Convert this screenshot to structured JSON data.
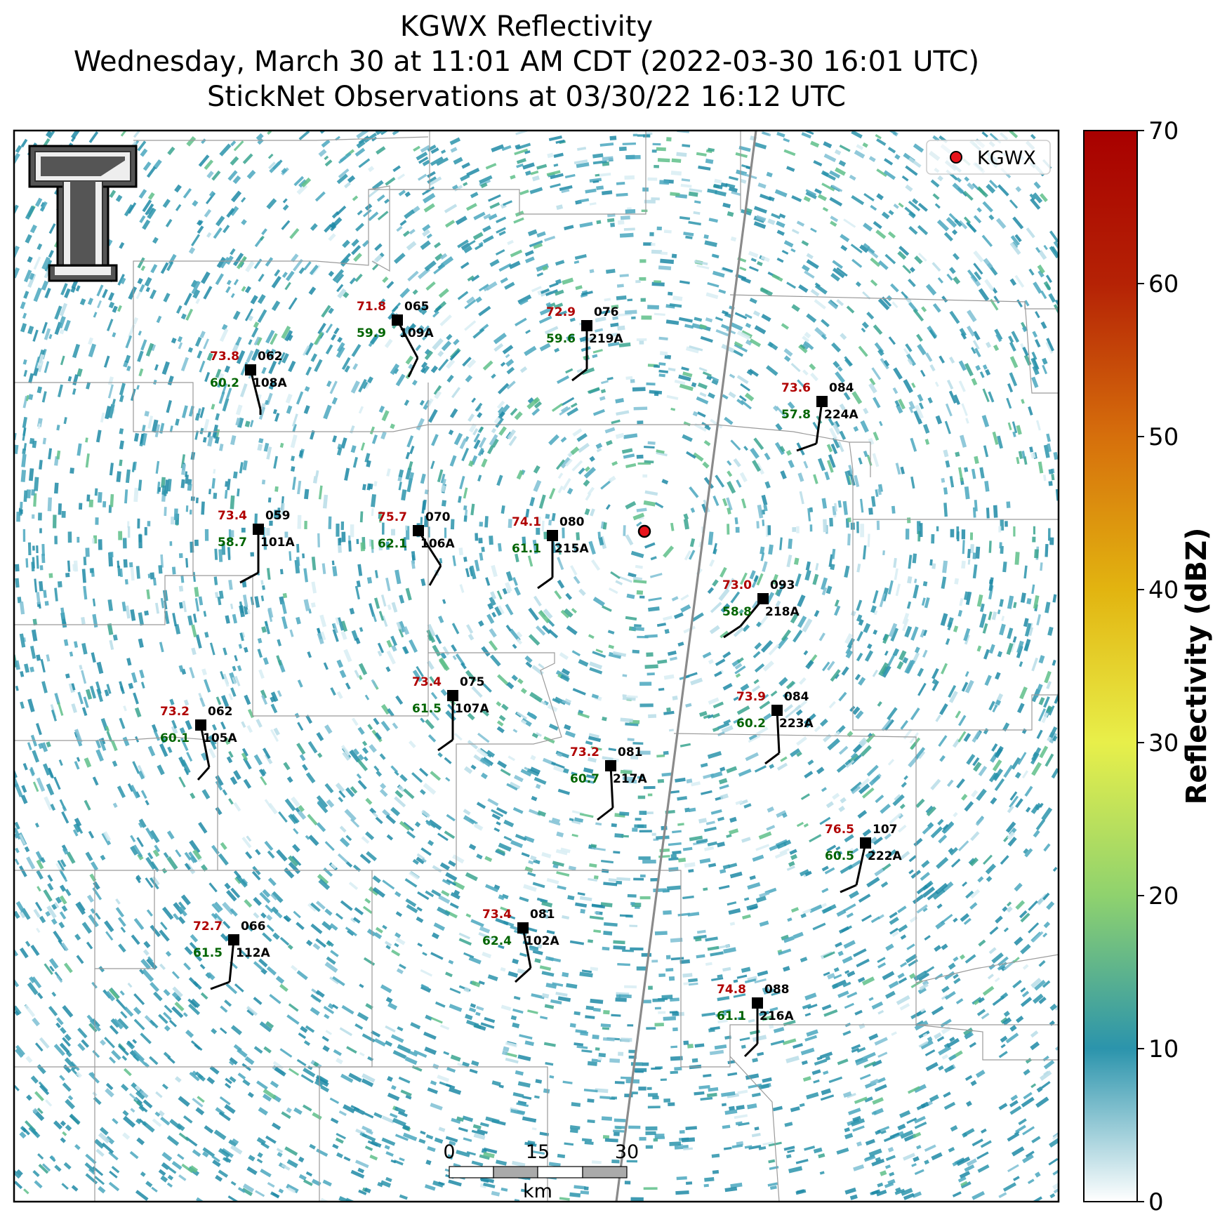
{
  "title": {
    "line1": "KGWX Reflectivity",
    "line2": "Wednesday, March 30 at 11:01 AM CDT (2022-03-30 16:01 UTC)",
    "line3": "StickNet Observations at 03/30/22 16:12 UTC"
  },
  "legend": {
    "label": "KGWX",
    "marker_color": "#e8131b"
  },
  "colorbar": {
    "label": "Reflectivity (dBZ)",
    "ticks": [
      "0",
      "10",
      "20",
      "30",
      "40",
      "50",
      "60",
      "70"
    ],
    "range": [
      0,
      70
    ],
    "colors": [
      "#ffffff",
      "#2b94ac",
      "#8fd26e",
      "#e8ef4a",
      "#e2b410",
      "#d66f0c",
      "#b52205",
      "#a80000"
    ]
  },
  "scalebar": {
    "labels": [
      "0",
      "15",
      "30"
    ],
    "unit": "km"
  },
  "colors": {
    "temp": "#b00000",
    "dew": "#006400"
  },
  "stations": [
    {
      "id": "065",
      "name": "109A",
      "temp": "71.8",
      "dew": "59.9"
    },
    {
      "id": "076",
      "name": "219A",
      "temp": "72.9",
      "dew": "59.6"
    },
    {
      "id": "062a",
      "name": "108A",
      "temp": "73.8",
      "dew": "60.2",
      "label": "062"
    },
    {
      "id": "084a",
      "name": "224A",
      "temp": "73.6",
      "dew": "57.8",
      "label": "084"
    },
    {
      "id": "059",
      "name": "101A",
      "temp": "73.4",
      "dew": "58.7"
    },
    {
      "id": "070",
      "name": "106A",
      "temp": "75.7",
      "dew": "62.1"
    },
    {
      "id": "080",
      "name": "215A",
      "temp": "74.1",
      "dew": "61.1"
    },
    {
      "id": "093",
      "name": "218A",
      "temp": "73.0",
      "dew": "58.8"
    },
    {
      "id": "075",
      "name": "107A",
      "temp": "73.4",
      "dew": "61.5"
    },
    {
      "id": "062b",
      "name": "105A",
      "temp": "73.2",
      "dew": "60.1",
      "label": "062"
    },
    {
      "id": "084b",
      "name": "223A",
      "temp": "73.9",
      "dew": "60.2",
      "label": "084"
    },
    {
      "id": "081a",
      "name": "217A",
      "temp": "73.2",
      "dew": "60.7",
      "label": "081"
    },
    {
      "id": "107",
      "name": "222A",
      "temp": "76.5",
      "dew": "60.5"
    },
    {
      "id": "066",
      "name": "112A",
      "temp": "72.7",
      "dew": "61.5"
    },
    {
      "id": "081b",
      "name": "102A",
      "temp": "73.4",
      "dew": "62.4",
      "label": "081"
    },
    {
      "id": "088",
      "name": "216A",
      "temp": "74.8",
      "dew": "61.1"
    }
  ]
}
